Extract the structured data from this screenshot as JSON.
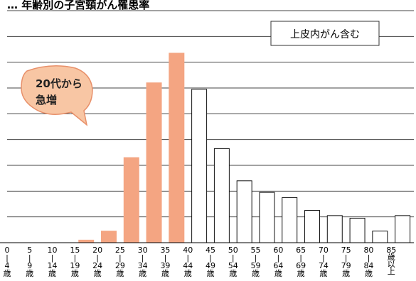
{
  "chart_data": {
    "type": "bar",
    "title": "…  年齢別の子宮頸がん罹患率",
    "legend_label": "上皮内がん含む",
    "callout_text": [
      "20代から",
      "急増"
    ],
    "grid": true,
    "ylim": [
      0,
      90
    ],
    "categories": [
      {
        "start": "0",
        "end": "4",
        "unit": "歳"
      },
      {
        "start": "5",
        "end": "9",
        "unit": "歳"
      },
      {
        "start": "10",
        "end": "14",
        "unit": "歳"
      },
      {
        "start": "15",
        "end": "19",
        "unit": "歳"
      },
      {
        "start": "20",
        "end": "24",
        "unit": "歳"
      },
      {
        "start": "25",
        "end": "29",
        "unit": "歳"
      },
      {
        "start": "30",
        "end": "34",
        "unit": "歳"
      },
      {
        "start": "35",
        "end": "39",
        "unit": "歳"
      },
      {
        "start": "40",
        "end": "44",
        "unit": "歳"
      },
      {
        "start": "45",
        "end": "49",
        "unit": "歳"
      },
      {
        "start": "50",
        "end": "54",
        "unit": "歳"
      },
      {
        "start": "55",
        "end": "59",
        "unit": "歳"
      },
      {
        "start": "60",
        "end": "64",
        "unit": "歳"
      },
      {
        "start": "65",
        "end": "69",
        "unit": "歳"
      },
      {
        "start": "70",
        "end": "74",
        "unit": "歳"
      },
      {
        "start": "75",
        "end": "79",
        "unit": "歳"
      },
      {
        "start": "80",
        "end": "84",
        "unit": "歳"
      },
      {
        "start": "85",
        "end": "",
        "unit": "歳以上"
      }
    ],
    "values": [
      0,
      0,
      0,
      1,
      4.5,
      33,
      62,
      73.5,
      59.5,
      36.5,
      24,
      19.5,
      17.5,
      12.5,
      10.5,
      9.5,
      4.5,
      10.5
    ],
    "highlight": [
      false,
      false,
      false,
      true,
      true,
      true,
      true,
      true,
      false,
      false,
      false,
      false,
      false,
      false,
      false,
      false,
      false,
      false
    ],
    "colors": {
      "highlight_fill": "#f4a582",
      "normal_fill": "#ffffff",
      "bar_stroke": "#111111",
      "grid": "#444444",
      "callout_fill": "#f8c6a4",
      "callout_stroke": "#e8906a"
    }
  }
}
